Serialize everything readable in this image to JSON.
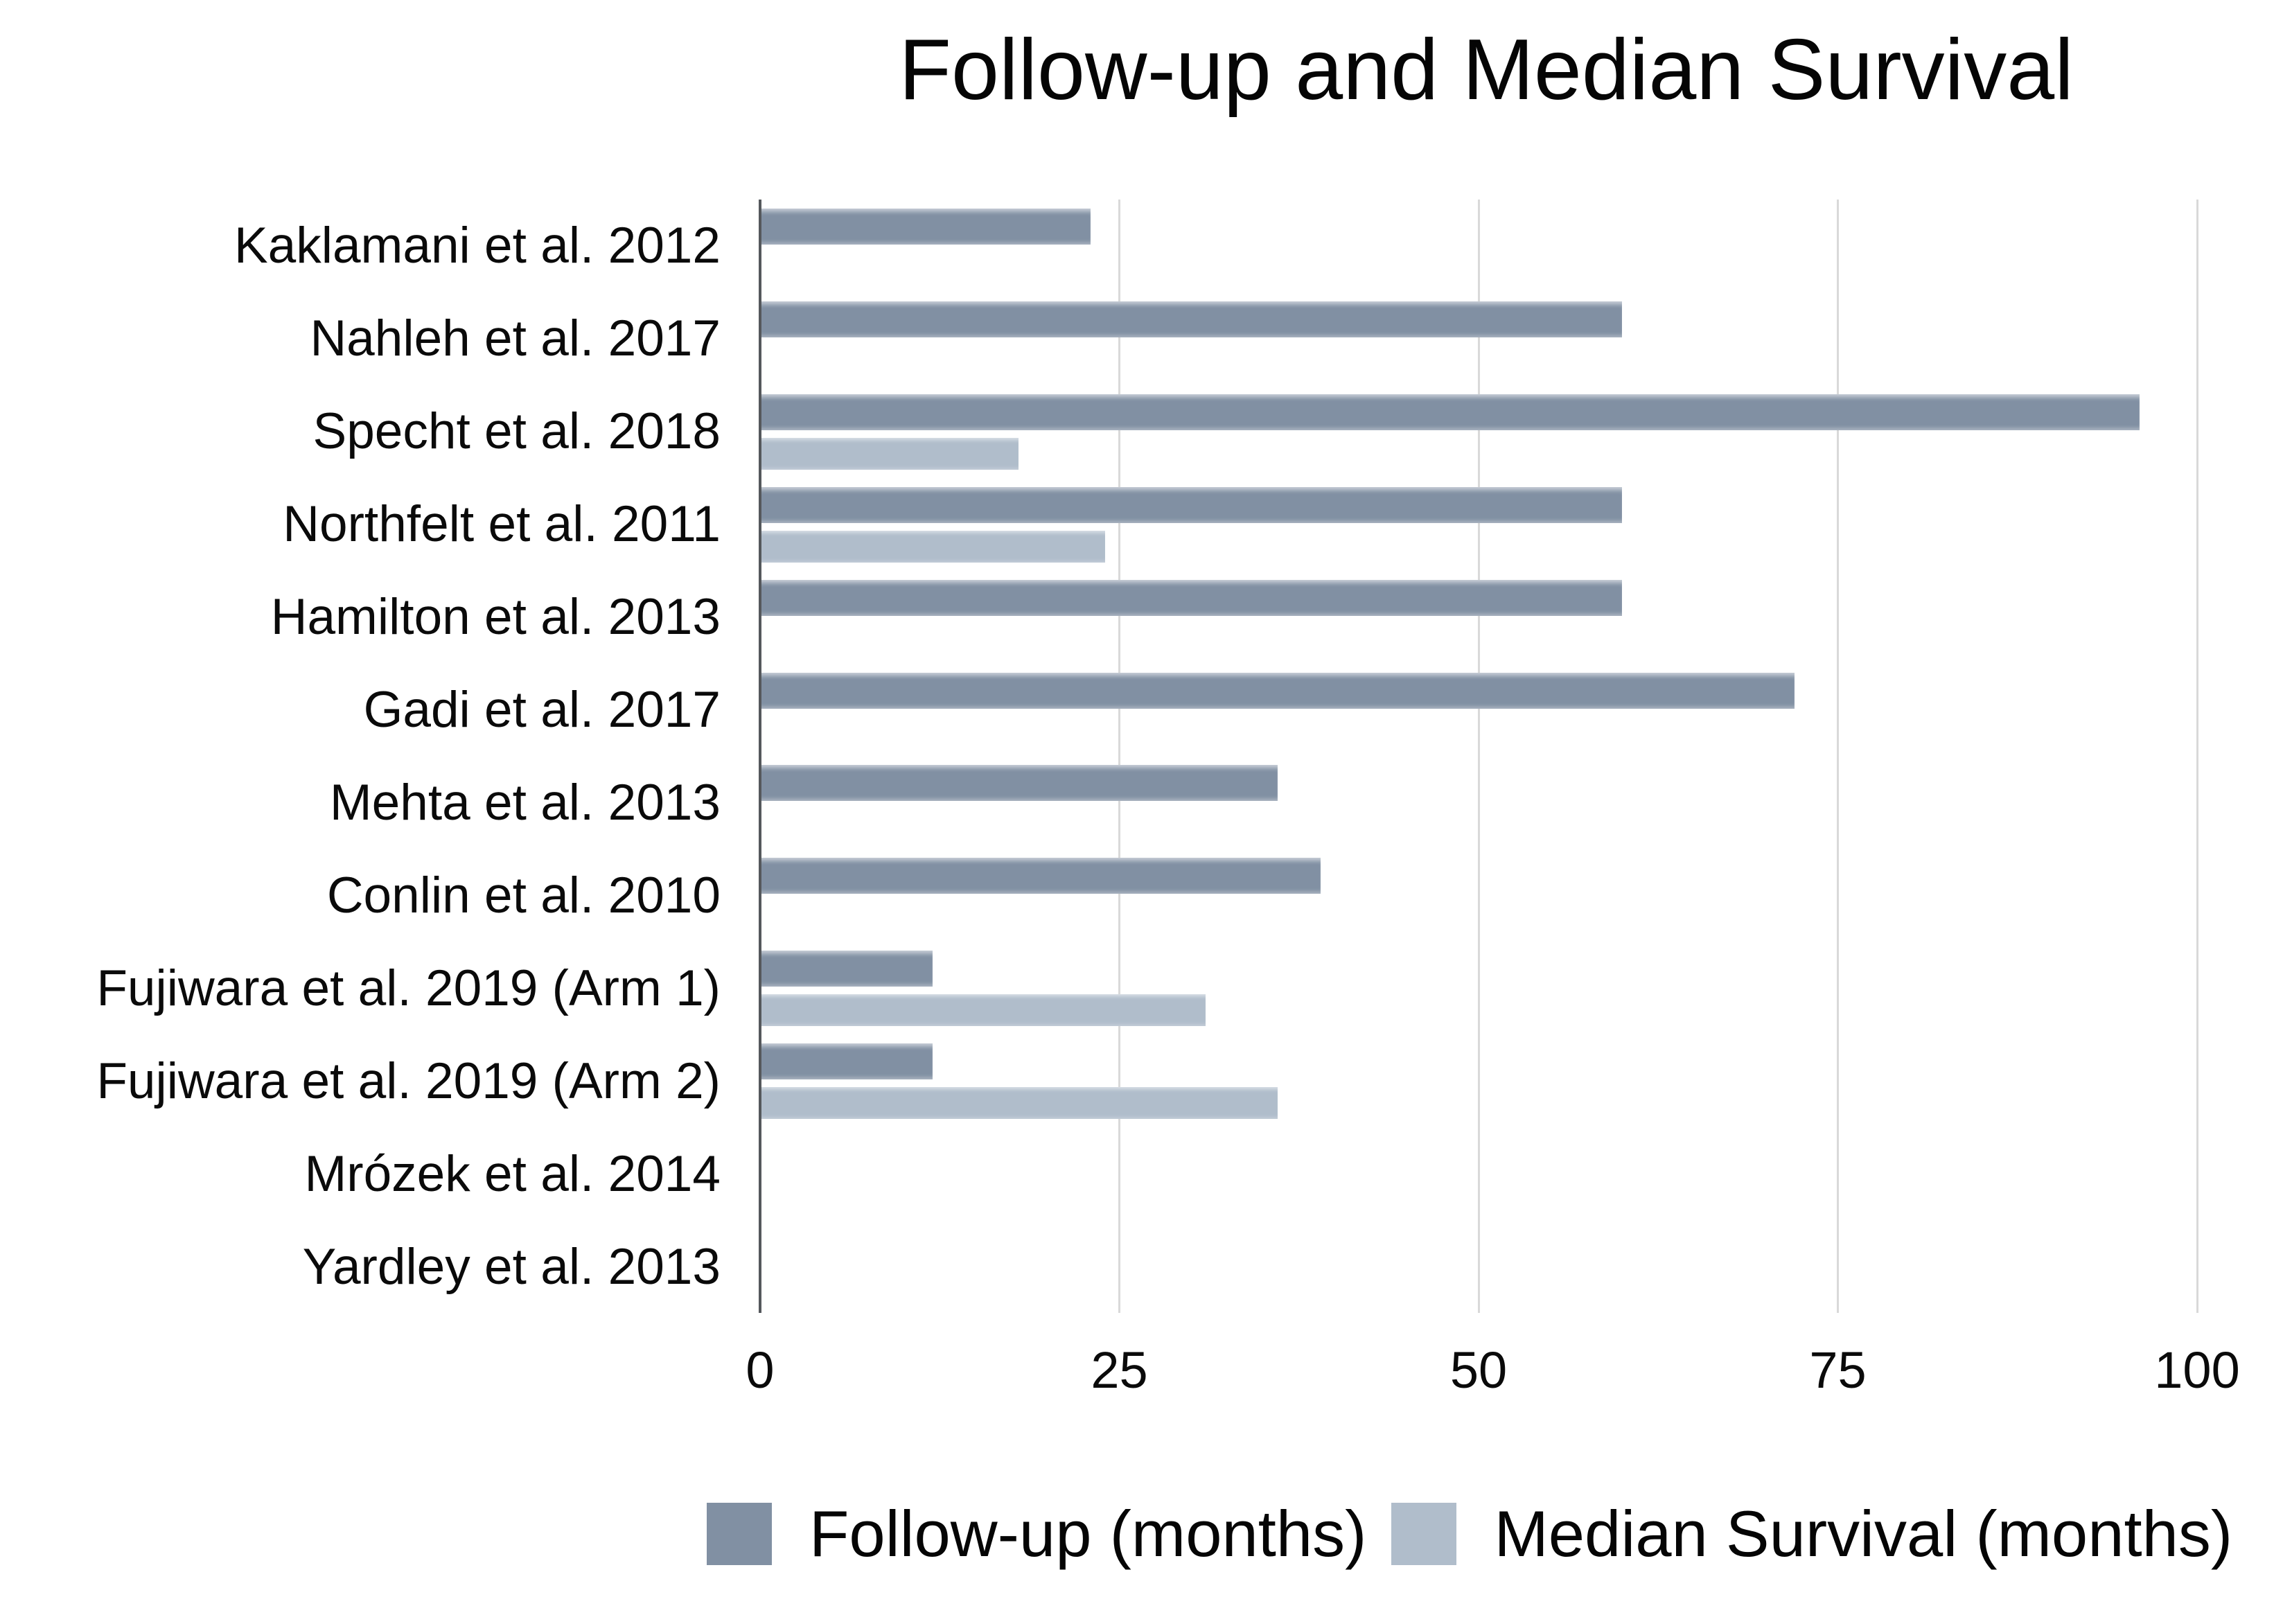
{
  "title": "Follow-up and Median Survival",
  "chart_data": {
    "type": "bar",
    "orientation": "horizontal",
    "title": "Follow-up and Median Survival",
    "xlabel": "",
    "ylabel": "",
    "xlim": [
      0,
      100
    ],
    "x_ticks": [
      "0",
      "25",
      "50",
      "75",
      "100"
    ],
    "x_tick_values": [
      0,
      25,
      50,
      75,
      100
    ],
    "grid": "vertical",
    "legend_position": "bottom",
    "categories": [
      "Kaklamani et al. 2012",
      "Nahleh et al. 2017",
      "Specht et al. 2018",
      "Northfelt et al. 2011",
      "Hamilton et al. 2013",
      "Gadi et al. 2017",
      "Mehta et al. 2013",
      "Conlin et al. 2010",
      "Fujiwara et al. 2019 (Arm 1)",
      "Fujiwara et al. 2019 (Arm 2)",
      "Mrózek et al. 2014",
      "Yardley et al. 2013"
    ],
    "series": [
      {
        "name": "Follow-up (months)",
        "color": "#8190a3",
        "values": [
          23,
          60,
          96,
          60,
          60,
          72,
          36,
          39,
          12,
          12,
          null,
          null
        ]
      },
      {
        "name": "Median Survival (months)",
        "color": "#b0bdcb",
        "values": [
          null,
          null,
          18,
          24,
          null,
          null,
          null,
          null,
          31,
          36,
          null,
          null
        ]
      }
    ]
  },
  "legend": {
    "items": [
      {
        "label": "Follow-up (months)",
        "color": "#8190a3"
      },
      {
        "label": "Median Survival (months)",
        "color": "#b0bdcb"
      }
    ]
  },
  "colors": {
    "background": "#ffffff",
    "followup_bar": "#8190a3",
    "survival_bar": "#b0bdcb",
    "gridline": "#d9d9d9",
    "axis_line": "#55585c",
    "text": "#0a0a0a"
  }
}
